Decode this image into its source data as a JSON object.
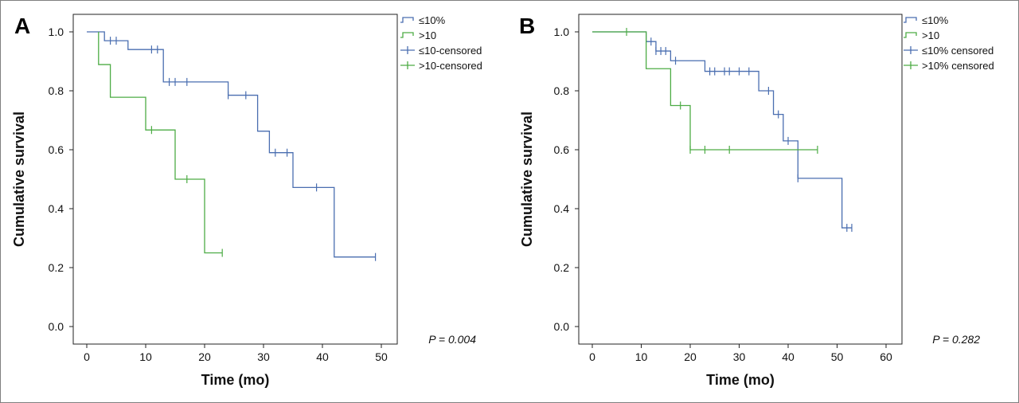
{
  "chart_data": [
    {
      "type": "line",
      "panel_label": "A",
      "xlabel": "Time (mo)",
      "ylabel": "Cumulative survival",
      "xlim": [
        0,
        50
      ],
      "ylim": [
        0,
        1
      ],
      "xticks": [
        "0",
        "10",
        "20",
        "30",
        "40",
        "50"
      ],
      "yticks": [
        "0.0",
        "0.2",
        "0.4",
        "0.6",
        "0.8",
        "1.0"
      ],
      "p_value": "P = 0.004",
      "legend": [
        "≤10%",
        ">10",
        "≤10-censored",
        ">10-censored"
      ],
      "series": [
        {
          "name": "≤10%",
          "color": "#4a6eb0",
          "steps": [
            [
              0,
              1.0
            ],
            [
              3,
              0.97
            ],
            [
              7,
              0.94
            ],
            [
              13,
              0.83
            ],
            [
              24,
              0.785
            ],
            [
              29,
              0.663
            ],
            [
              31,
              0.59
            ],
            [
              35,
              0.472
            ],
            [
              42,
              0.236
            ],
            [
              49,
              0.236
            ]
          ],
          "censored": [
            [
              4,
              0.97
            ],
            [
              5,
              0.97
            ],
            [
              11,
              0.94
            ],
            [
              12,
              0.94
            ],
            [
              14,
              0.83
            ],
            [
              15,
              0.83
            ],
            [
              17,
              0.83
            ],
            [
              24,
              0.785
            ],
            [
              27,
              0.785
            ],
            [
              32,
              0.59
            ],
            [
              34,
              0.59
            ],
            [
              39,
              0.472
            ],
            [
              49,
              0.236
            ]
          ]
        },
        {
          "name": ">10",
          "color": "#4dac45",
          "steps": [
            [
              2,
              1.0
            ],
            [
              2,
              0.889
            ],
            [
              4,
              0.778
            ],
            [
              10,
              0.667
            ],
            [
              15,
              0.5
            ],
            [
              20,
              0.25
            ],
            [
              23,
              0.25
            ]
          ],
          "censored": [
            [
              11,
              0.667
            ],
            [
              17,
              0.5
            ],
            [
              23,
              0.25
            ]
          ]
        }
      ]
    },
    {
      "type": "line",
      "panel_label": "B",
      "xlabel": "Time (mo)",
      "ylabel": "Cumulative survival",
      "xlim": [
        0,
        60
      ],
      "ylim": [
        0,
        1
      ],
      "xticks": [
        "0",
        "10",
        "20",
        "30",
        "40",
        "50",
        "60"
      ],
      "yticks": [
        "0.0",
        "0.2",
        "0.4",
        "0.6",
        "0.8",
        "1.0"
      ],
      "p_value": "P = 0.282",
      "legend": [
        "≤10%",
        ">10",
        "≤10% censored",
        ">10% censored"
      ],
      "series": [
        {
          "name": "≤10%",
          "color": "#4a6eb0",
          "steps": [
            [
              0,
              1.0
            ],
            [
              11,
              0.967
            ],
            [
              13,
              0.935
            ],
            [
              16,
              0.902
            ],
            [
              23,
              0.866
            ],
            [
              34,
              0.8
            ],
            [
              37,
              0.72
            ],
            [
              39,
              0.63
            ],
            [
              42,
              0.503
            ],
            [
              51,
              0.335
            ],
            [
              53,
              0.335
            ]
          ],
          "censored": [
            [
              12,
              0.967
            ],
            [
              13,
              0.935
            ],
            [
              14,
              0.935
            ],
            [
              15,
              0.935
            ],
            [
              17,
              0.902
            ],
            [
              24,
              0.866
            ],
            [
              25,
              0.866
            ],
            [
              27,
              0.866
            ],
            [
              28,
              0.866
            ],
            [
              30,
              0.866
            ],
            [
              32,
              0.866
            ],
            [
              36,
              0.8
            ],
            [
              38,
              0.72
            ],
            [
              40,
              0.63
            ],
            [
              42,
              0.503
            ],
            [
              52,
              0.335
            ],
            [
              53,
              0.335
            ]
          ]
        },
        {
          "name": ">10",
          "color": "#4dac45",
          "steps": [
            [
              0,
              1.0
            ],
            [
              11,
              0.875
            ],
            [
              16,
              0.75
            ],
            [
              20,
              0.6
            ],
            [
              46,
              0.6
            ]
          ],
          "censored": [
            [
              7,
              1.0
            ],
            [
              18,
              0.75
            ],
            [
              20,
              0.6
            ],
            [
              23,
              0.6
            ],
            [
              28,
              0.6
            ],
            [
              46,
              0.6
            ]
          ]
        }
      ]
    }
  ]
}
